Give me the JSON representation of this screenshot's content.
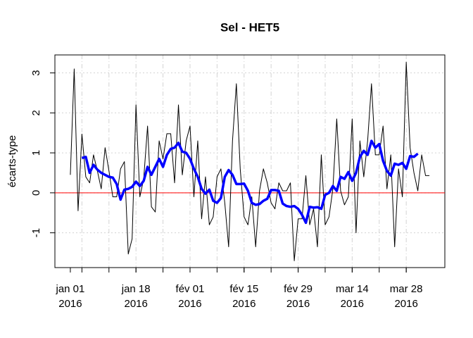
{
  "chart_data": {
    "type": "line",
    "title": "Sel - HET5",
    "y_label": "écarts-type",
    "x": [
      "2016-01-01",
      "2016-01-02",
      "2016-01-03",
      "2016-01-04",
      "2016-01-05",
      "2016-01-06",
      "2016-01-07",
      "2016-01-08",
      "2016-01-09",
      "2016-01-10",
      "2016-01-11",
      "2016-01-12",
      "2016-01-13",
      "2016-01-14",
      "2016-01-15",
      "2016-01-16",
      "2016-01-17",
      "2016-01-18",
      "2016-01-19",
      "2016-01-20",
      "2016-01-21",
      "2016-01-22",
      "2016-01-23",
      "2016-01-24",
      "2016-01-25",
      "2016-01-26",
      "2016-01-27",
      "2016-01-28",
      "2016-01-29",
      "2016-01-30",
      "2016-01-31",
      "2016-02-01",
      "2016-02-02",
      "2016-02-03",
      "2016-02-04",
      "2016-02-05",
      "2016-02-06",
      "2016-02-07",
      "2016-02-08",
      "2016-02-09",
      "2016-02-10",
      "2016-02-11",
      "2016-02-12",
      "2016-02-13",
      "2016-02-14",
      "2016-02-15",
      "2016-02-16",
      "2016-02-17",
      "2016-02-18",
      "2016-02-19",
      "2016-02-20",
      "2016-02-21",
      "2016-02-22",
      "2016-02-23",
      "2016-02-24",
      "2016-02-25",
      "2016-02-26",
      "2016-02-27",
      "2016-02-28",
      "2016-02-29",
      "2016-03-01",
      "2016-03-02",
      "2016-03-03",
      "2016-03-04",
      "2016-03-05",
      "2016-03-06",
      "2016-03-07",
      "2016-03-08",
      "2016-03-09",
      "2016-03-10",
      "2016-03-11",
      "2016-03-12",
      "2016-03-13",
      "2016-03-14",
      "2016-03-15",
      "2016-03-16",
      "2016-03-17",
      "2016-03-18",
      "2016-03-19",
      "2016-03-20",
      "2016-03-21",
      "2016-03-22",
      "2016-03-23",
      "2016-03-24",
      "2016-03-25",
      "2016-03-26",
      "2016-03-27",
      "2016-03-28",
      "2016-03-29",
      "2016-03-30",
      "2016-03-31",
      "2016-04-01",
      "2016-04-02",
      "2016-04-03"
    ],
    "series": [
      {
        "color": "#000000",
        "width": 1,
        "values": [
          0.45,
          3.1,
          -0.45,
          1.47,
          0.4,
          0.25,
          0.95,
          0.55,
          0.1,
          1.13,
          0.55,
          -0.1,
          -0.1,
          0.6,
          0.78,
          -1.53,
          -1.15,
          2.2,
          -0.1,
          0.35,
          1.67,
          -0.35,
          -0.48,
          1.3,
          0.85,
          1.48,
          1.48,
          0.25,
          2.2,
          0.45,
          1.3,
          1.67,
          -0.1,
          1.3,
          -0.65,
          0.4,
          -0.8,
          -0.6,
          0.4,
          0.6,
          -0.25,
          -1.35,
          1.3,
          2.73,
          0.6,
          -0.6,
          -0.8,
          -0.1,
          -1.35,
          0.05,
          0.6,
          0.25,
          -0.25,
          -0.4,
          0.25,
          0.05,
          0.05,
          0.25,
          -1.7,
          -0.65,
          -0.65,
          0.43,
          -0.8,
          -0.4,
          -1.35,
          0.95,
          -0.8,
          -0.6,
          0.1,
          1.85,
          0.05,
          -0.3,
          -0.1,
          1.85,
          -1.0,
          1.3,
          0.4,
          1.3,
          2.73,
          0.95,
          0.95,
          1.67,
          0.1,
          0.95,
          -1.35,
          0.6,
          -0.1,
          3.27,
          1.13,
          0.5,
          0.05,
          0.95,
          0.43,
          0.43
        ]
      },
      {
        "color": "#0000ff",
        "width": 3.5,
        "values": [
          null,
          null,
          null,
          0.87,
          0.9,
          0.5,
          0.7,
          0.58,
          0.5,
          0.45,
          0.4,
          0.38,
          0.22,
          -0.17,
          0.08,
          0.1,
          0.15,
          0.28,
          0.17,
          0.3,
          0.65,
          0.45,
          0.65,
          0.85,
          0.65,
          0.95,
          1.1,
          1.13,
          1.25,
          1.03,
          1.0,
          0.85,
          0.6,
          0.4,
          0.1,
          -0.02,
          0.08,
          -0.2,
          -0.25,
          -0.13,
          0.4,
          0.57,
          0.45,
          0.22,
          0.22,
          0.23,
          0.05,
          -0.25,
          -0.3,
          -0.28,
          -0.2,
          -0.15,
          0.07,
          0.07,
          0.05,
          -0.27,
          -0.33,
          -0.35,
          -0.33,
          -0.4,
          -0.55,
          -0.75,
          -0.35,
          -0.37,
          -0.36,
          -0.4,
          -0.05,
          0.0,
          0.17,
          0.05,
          0.4,
          0.35,
          0.52,
          0.3,
          0.5,
          0.9,
          1.05,
          0.95,
          1.3,
          1.13,
          1.22,
          0.8,
          0.55,
          0.43,
          0.73,
          0.7,
          0.75,
          0.6,
          0.92,
          0.9,
          0.98,
          null,
          null,
          null
        ]
      }
    ],
    "hline": {
      "value": 0,
      "color": "#ff0000"
    },
    "xlim": [
      "2015-12-28",
      "2016-04-07"
    ],
    "xticks": [
      {
        "value": "2016-01-01",
        "label": [
          "jan 01",
          "2016"
        ]
      },
      {
        "value": "2016-01-18",
        "label": [
          "jan 18",
          "2016"
        ]
      },
      {
        "value": "2016-02-01",
        "label": [
          "fév 01",
          "2016"
        ]
      },
      {
        "value": "2016-02-15",
        "label": [
          "fév 15",
          "2016"
        ]
      },
      {
        "value": "2016-02-29",
        "label": [
          "fév 29",
          "2016"
        ]
      },
      {
        "value": "2016-03-14",
        "label": [
          "mar 14",
          "2016"
        ]
      },
      {
        "value": "2016-03-28",
        "label": [
          "mar 28",
          "2016"
        ]
      }
    ],
    "minor_xticks": [
      "2016-01-04",
      "2016-01-11",
      "2016-01-18",
      "2016-01-25",
      "2016-02-01",
      "2016-02-08",
      "2016-02-15",
      "2016-02-22",
      "2016-02-29",
      "2016-03-07",
      "2016-03-14",
      "2016-03-21",
      "2016-03-28"
    ],
    "ylim": [
      -1.87,
      3.45
    ],
    "yticks": [
      -1,
      0,
      1,
      2,
      3
    ],
    "grid": true
  }
}
